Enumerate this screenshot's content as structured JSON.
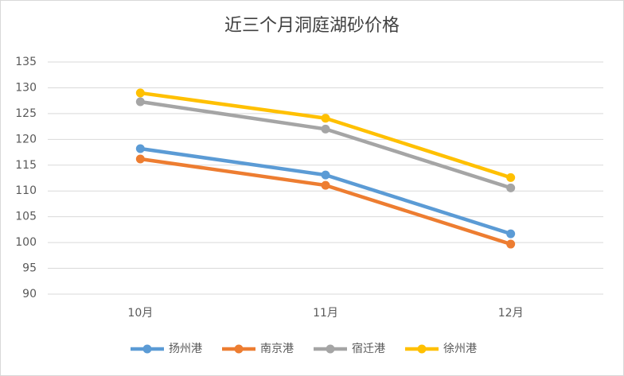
{
  "chart_data": {
    "type": "line",
    "title": "近三个月洞庭湖砂价格",
    "categories": [
      "10月",
      "11月",
      "12月"
    ],
    "series": [
      {
        "name": "扬州港",
        "color": "#5b9bd5",
        "values": [
          118.2,
          113.1,
          101.7
        ]
      },
      {
        "name": "南京港",
        "color": "#ed7d31",
        "values": [
          116.2,
          111.1,
          99.7
        ]
      },
      {
        "name": "宿迁港",
        "color": "#a5a5a5",
        "values": [
          127.3,
          122.0,
          110.6
        ]
      },
      {
        "name": "徐州港",
        "color": "#ffc000",
        "values": [
          129.0,
          124.1,
          112.6
        ]
      }
    ],
    "ylim": [
      90,
      135
    ],
    "yticks": [
      90,
      95,
      100,
      105,
      110,
      115,
      120,
      125,
      130,
      135
    ],
    "grid": true,
    "legend": "bottom"
  }
}
